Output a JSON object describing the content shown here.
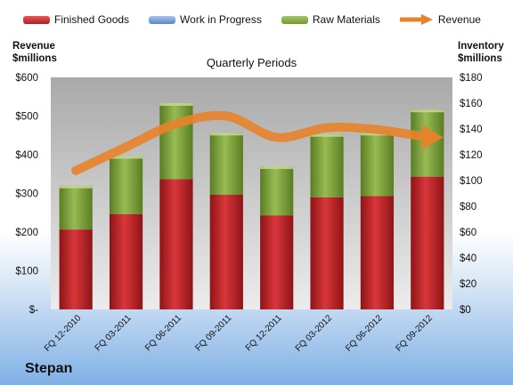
{
  "legend": {
    "finished_goods": "Finished Goods",
    "work_in_progress": "Work in Progress",
    "raw_materials": "Raw Materials",
    "revenue": "Revenue"
  },
  "left_axis_title": [
    "Revenue",
    "$millions"
  ],
  "right_axis_title": [
    "Inventory",
    "$millions"
  ],
  "company": "Stepan",
  "colors": {
    "finished_goods": "#c0272d",
    "work_in_progress": "#5c86c8",
    "raw_materials": "#7ea33a",
    "revenue": "#e8822a",
    "plot_bg_top": "#a9a9a9",
    "plot_bg_bottom": "#ececec"
  },
  "chart_data": {
    "type": "bar",
    "stacked": true,
    "title": "Quarterly Periods",
    "categories": [
      "FQ 12-2010",
      "FQ 03-2011",
      "FQ 06-2011",
      "FQ 09-2011",
      "FQ 12-2011",
      "FQ 03-2012",
      "FQ 06-2012",
      "FQ 09-2012"
    ],
    "series": [
      {
        "name": "Finished Goods",
        "axis": "right",
        "values": [
          62,
          74,
          101,
          89,
          73,
          87,
          88,
          103
        ]
      },
      {
        "name": "Work in Progress",
        "axis": "right",
        "values": [
          0,
          0,
          0,
          0,
          0,
          0,
          0,
          0
        ]
      },
      {
        "name": "Raw Materials",
        "axis": "right",
        "values": [
          34,
          45,
          59,
          48,
          38,
          49,
          49,
          52
        ]
      },
      {
        "name": "Revenue",
        "axis": "left",
        "type": "line",
        "values": [
          359,
          420,
          480,
          500,
          445,
          470,
          465,
          445
        ]
      }
    ],
    "left_axis": {
      "label": "Revenue $millions",
      "ylim": [
        0,
        600
      ],
      "ticks": [
        "$-",
        "$100",
        "$200",
        "$300",
        "$400",
        "$500",
        "$600"
      ]
    },
    "right_axis": {
      "label": "Inventory $millions",
      "ylim": [
        0,
        180
      ],
      "ticks": [
        "$0",
        "$20",
        "$40",
        "$60",
        "$80",
        "$100",
        "$120",
        "$140",
        "$160",
        "$180"
      ]
    },
    "grid": false,
    "legend_position": "top"
  }
}
